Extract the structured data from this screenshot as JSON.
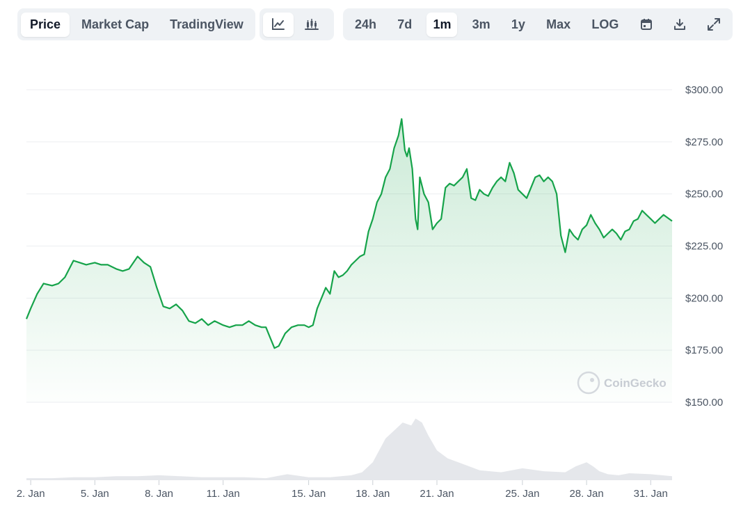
{
  "toolbar": {
    "view_tabs": [
      {
        "label": "Price",
        "active": true
      },
      {
        "label": "Market Cap",
        "active": false
      },
      {
        "label": "TradingView",
        "active": false
      }
    ],
    "chart_type_buttons": [
      {
        "icon": "line-chart-icon",
        "active": true
      },
      {
        "icon": "candlestick-chart-icon",
        "active": false
      }
    ],
    "ranges": [
      {
        "label": "24h",
        "active": false
      },
      {
        "label": "7d",
        "active": false
      },
      {
        "label": "1m",
        "active": true
      },
      {
        "label": "3m",
        "active": false
      },
      {
        "label": "1y",
        "active": false
      },
      {
        "label": "Max",
        "active": false
      },
      {
        "label": "LOG",
        "active": false
      }
    ],
    "action_icons": [
      "calendar-icon",
      "download-icon",
      "fullscreen-icon"
    ]
  },
  "watermark": "CoinGecko",
  "colors": {
    "line": "#16a34a",
    "volume": "#e5e7eb",
    "grid": "#eceef1",
    "accent_bg": "#eff2f5"
  },
  "chart_data": {
    "type": "line",
    "title": "",
    "xlabel": "",
    "ylabel": "",
    "ylim": [
      150,
      300
    ],
    "yticks": [
      "$300.00",
      "$275.00",
      "$250.00",
      "$225.00",
      "$200.00",
      "$175.00",
      "$150.00"
    ],
    "ytick_values": [
      300,
      275,
      250,
      225,
      200,
      175,
      150
    ],
    "xlim": [
      1.8,
      32.0
    ],
    "xticks": [
      "2. Jan",
      "5. Jan",
      "8. Jan",
      "11. Jan",
      "15. Jan",
      "18. Jan",
      "21. Jan",
      "25. Jan",
      "28. Jan",
      "31. Jan"
    ],
    "xtick_values": [
      2,
      5,
      8,
      11,
      15,
      18,
      21,
      25,
      28,
      31
    ],
    "grid": true,
    "series": [
      {
        "type": "line",
        "x": [
          1.8,
          2.0,
          2.3,
          2.6,
          3.0,
          3.3,
          3.6,
          4.0,
          4.3,
          4.6,
          5.0,
          5.3,
          5.6,
          6.0,
          6.3,
          6.6,
          7.0,
          7.3,
          7.6,
          7.9,
          8.2,
          8.5,
          8.8,
          9.1,
          9.4,
          9.7,
          10.0,
          10.3,
          10.6,
          11.0,
          11.3,
          11.6,
          11.9,
          12.2,
          12.5,
          12.8,
          13.0,
          13.2,
          13.4,
          13.6,
          13.9,
          14.2,
          14.5,
          14.8,
          15.0,
          15.2,
          15.4,
          15.6,
          15.8,
          16.0,
          16.2,
          16.4,
          16.6,
          16.8,
          17.0,
          17.2,
          17.4,
          17.6,
          17.8,
          18.0,
          18.2,
          18.4,
          18.6,
          18.8,
          19.0,
          19.2,
          19.35,
          19.5,
          19.6,
          19.7,
          19.85,
          20.0,
          20.1,
          20.2,
          20.4,
          20.6,
          20.8,
          21.0,
          21.2,
          21.4,
          21.6,
          21.8,
          22.0,
          22.2,
          22.4,
          22.6,
          22.8,
          23.0,
          23.2,
          23.4,
          23.6,
          23.8,
          24.0,
          24.2,
          24.4,
          24.6,
          24.8,
          25.0,
          25.2,
          25.4,
          25.6,
          25.8,
          26.0,
          26.2,
          26.4,
          26.6,
          26.8,
          27.0,
          27.2,
          27.4,
          27.6,
          27.8,
          28.0,
          28.2,
          28.4,
          28.6,
          28.8,
          29.0,
          29.2,
          29.4,
          29.6,
          29.8,
          30.0,
          30.2,
          30.4,
          30.6,
          30.8,
          31.0,
          31.2,
          31.4,
          31.6,
          32.0
        ],
        "y": [
          190,
          195,
          202,
          207,
          206,
          207,
          210,
          218,
          217,
          216,
          217,
          216,
          216,
          214,
          213,
          214,
          220,
          217,
          215,
          205,
          196,
          195,
          197,
          194,
          189,
          188,
          190,
          187,
          189,
          187,
          186,
          187,
          187,
          189,
          187,
          186,
          186,
          181,
          176,
          177,
          183,
          186,
          187,
          187,
          186,
          187,
          195,
          200,
          205,
          202,
          213,
          210,
          211,
          213,
          216,
          218,
          220,
          221,
          232,
          238,
          246,
          250,
          258,
          262,
          272,
          278,
          286,
          271,
          268,
          272,
          262,
          238,
          233,
          258,
          250,
          246,
          233,
          236,
          238,
          253,
          255,
          254,
          256,
          258,
          262,
          248,
          247,
          252,
          250,
          249,
          253,
          256,
          258,
          256,
          265,
          260,
          252,
          250,
          248,
          253,
          258,
          259,
          256,
          258,
          256,
          250,
          230,
          222,
          233,
          230,
          228,
          233,
          235,
          240,
          236,
          233,
          229,
          231,
          233,
          231,
          228,
          232,
          233,
          237,
          238,
          242,
          240,
          238,
          236,
          238,
          240,
          237
        ]
      }
    ],
    "volume": {
      "x": [
        1.8,
        3,
        4,
        5,
        6,
        7,
        8,
        9,
        10,
        11,
        12,
        13,
        14,
        15,
        16,
        17,
        17.5,
        18,
        18.3,
        18.6,
        19.0,
        19.4,
        19.8,
        20.0,
        20.3,
        20.6,
        21.0,
        21.5,
        22.0,
        22.5,
        23,
        24,
        25,
        26,
        27,
        27.5,
        28,
        28.3,
        28.6,
        29,
        29.5,
        30,
        31,
        32
      ],
      "values": [
        2,
        2,
        3,
        3,
        4,
        4,
        5,
        4,
        3,
        3,
        3,
        2,
        6,
        3,
        3,
        5,
        8,
        18,
        30,
        42,
        50,
        58,
        55,
        62,
        58,
        45,
        30,
        22,
        18,
        14,
        10,
        8,
        12,
        9,
        8,
        14,
        18,
        14,
        9,
        6,
        5,
        7,
        6,
        4
      ],
      "max": 70
    }
  }
}
